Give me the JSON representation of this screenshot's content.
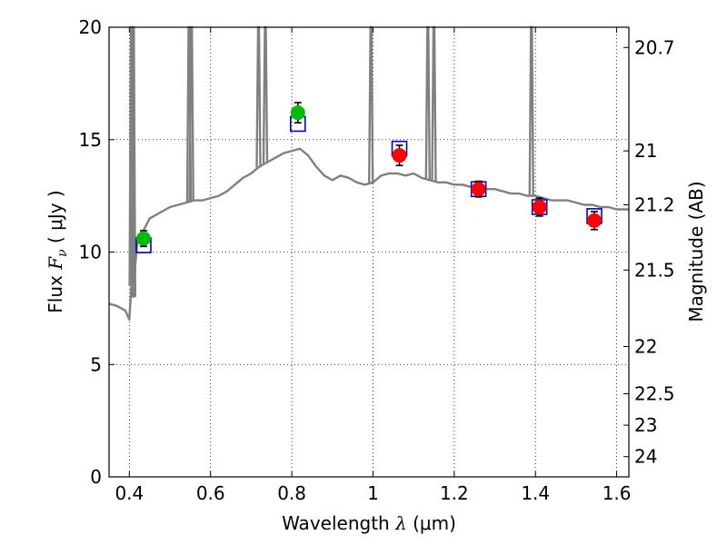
{
  "chart_data": {
    "type": "scatter",
    "xlim": [
      0.35,
      1.63
    ],
    "ylim": [
      0,
      20
    ],
    "grid": true,
    "xlabel": {
      "prefix": "Wavelength  ",
      "symbol": "λ",
      "suffix": " (μm)"
    },
    "ylabel": {
      "prefix": "Flux  ",
      "symbol": "F",
      "sub": "ν",
      "suffix": "  ( μJy )"
    },
    "ylabel_right": "Magnitude (AB)",
    "x_ticks": [
      0.4,
      0.6,
      0.8,
      1.0,
      1.2,
      1.4,
      1.6
    ],
    "x_tick_labels": [
      "0.4",
      "0.6",
      "0.8",
      "1",
      "1.2",
      "1.4",
      "1.6"
    ],
    "y_ticks": [
      0,
      5,
      10,
      15,
      20
    ],
    "y_tick_labels": [
      "0",
      "5",
      "10",
      "15",
      "20"
    ],
    "right_ticks": [
      {
        "label": "20.7",
        "flux": 19.1
      },
      {
        "label": "21",
        "flux": 14.5
      },
      {
        "label": "21.2",
        "flux": 12.1
      },
      {
        "label": "21.5",
        "flux": 9.2
      },
      {
        "label": "22",
        "flux": 5.8
      },
      {
        "label": "22.5",
        "flux": 3.7
      },
      {
        "label": "23",
        "flux": 2.3
      },
      {
        "label": "24",
        "flux": 0.9
      }
    ],
    "colors": {
      "spectrum": "#808080",
      "observed_a": "#00bb00",
      "observed_b": "#ff0000",
      "model": "#0000cc",
      "errorbar": "#000000"
    },
    "series": [
      {
        "type": "line",
        "x": [
          0.35,
          0.37,
          0.39,
          0.395,
          0.4,
          0.405,
          0.41,
          0.415,
          0.42,
          0.43,
          0.45,
          0.47,
          0.49,
          0.5,
          0.52,
          0.54,
          0.56,
          0.58,
          0.6,
          0.62,
          0.64,
          0.66,
          0.68,
          0.7,
          0.72,
          0.74,
          0.76,
          0.78,
          0.8,
          0.82,
          0.84,
          0.86,
          0.88,
          0.9,
          0.92,
          0.94,
          0.96,
          0.98,
          1.0,
          1.02,
          1.04,
          1.06,
          1.08,
          1.1,
          1.12,
          1.14,
          1.16,
          1.18,
          1.2,
          1.22,
          1.24,
          1.26,
          1.28,
          1.3,
          1.32,
          1.34,
          1.36,
          1.38,
          1.4,
          1.42,
          1.44,
          1.46,
          1.48,
          1.5,
          1.52,
          1.54,
          1.56,
          1.58,
          1.6,
          1.62,
          1.63
        ],
        "y": [
          7.7,
          7.6,
          7.4,
          7.2,
          7.0,
          8.5,
          8.0,
          9.5,
          10.5,
          10.8,
          11.5,
          11.7,
          11.9,
          12.0,
          12.1,
          12.2,
          12.3,
          12.3,
          12.4,
          12.5,
          12.7,
          13.0,
          13.3,
          13.5,
          13.8,
          14.0,
          14.2,
          14.4,
          14.5,
          14.6,
          14.3,
          13.8,
          13.4,
          13.2,
          13.4,
          13.3,
          13.1,
          13.0,
          13.1,
          13.4,
          13.5,
          13.5,
          13.4,
          13.5,
          13.3,
          13.2,
          13.1,
          13.1,
          13.0,
          13.0,
          12.9,
          12.8,
          12.8,
          12.8,
          12.7,
          12.6,
          12.6,
          12.5,
          12.5,
          12.4,
          12.3,
          12.3,
          12.3,
          12.2,
          12.1,
          12.1,
          12.0,
          12.0,
          11.9,
          11.9,
          11.9
        ],
        "emission_lines": [
          0.405,
          0.41,
          0.547,
          0.553,
          0.718,
          0.735,
          0.995,
          1.135,
          1.15,
          1.39
        ]
      },
      {
        "name": "",
        "type": "scatter",
        "points": [
          {
            "x": 0.435,
            "y": 10.6,
            "err": 0.35,
            "color": "observed_a"
          },
          {
            "x": 0.815,
            "y": 16.2,
            "err": 0.45,
            "color": "observed_a"
          },
          {
            "x": 1.065,
            "y": 14.3,
            "err": 0.45,
            "color": "observed_b"
          },
          {
            "x": 1.26,
            "y": 12.8,
            "err": 0.35,
            "color": "observed_b"
          },
          {
            "x": 1.41,
            "y": 12.0,
            "err": 0.4,
            "color": "observed_b"
          },
          {
            "x": 1.545,
            "y": 11.4,
            "err": 0.4,
            "color": "observed_b"
          }
        ]
      },
      {
        "name": "",
        "type": "scatter",
        "marker": "open-square",
        "points": [
          {
            "x": 0.435,
            "y": 10.3
          },
          {
            "x": 0.815,
            "y": 15.7
          },
          {
            "x": 1.065,
            "y": 14.6
          },
          {
            "x": 1.26,
            "y": 12.8
          },
          {
            "x": 1.41,
            "y": 12.0
          },
          {
            "x": 1.545,
            "y": 11.6
          }
        ]
      }
    ]
  }
}
